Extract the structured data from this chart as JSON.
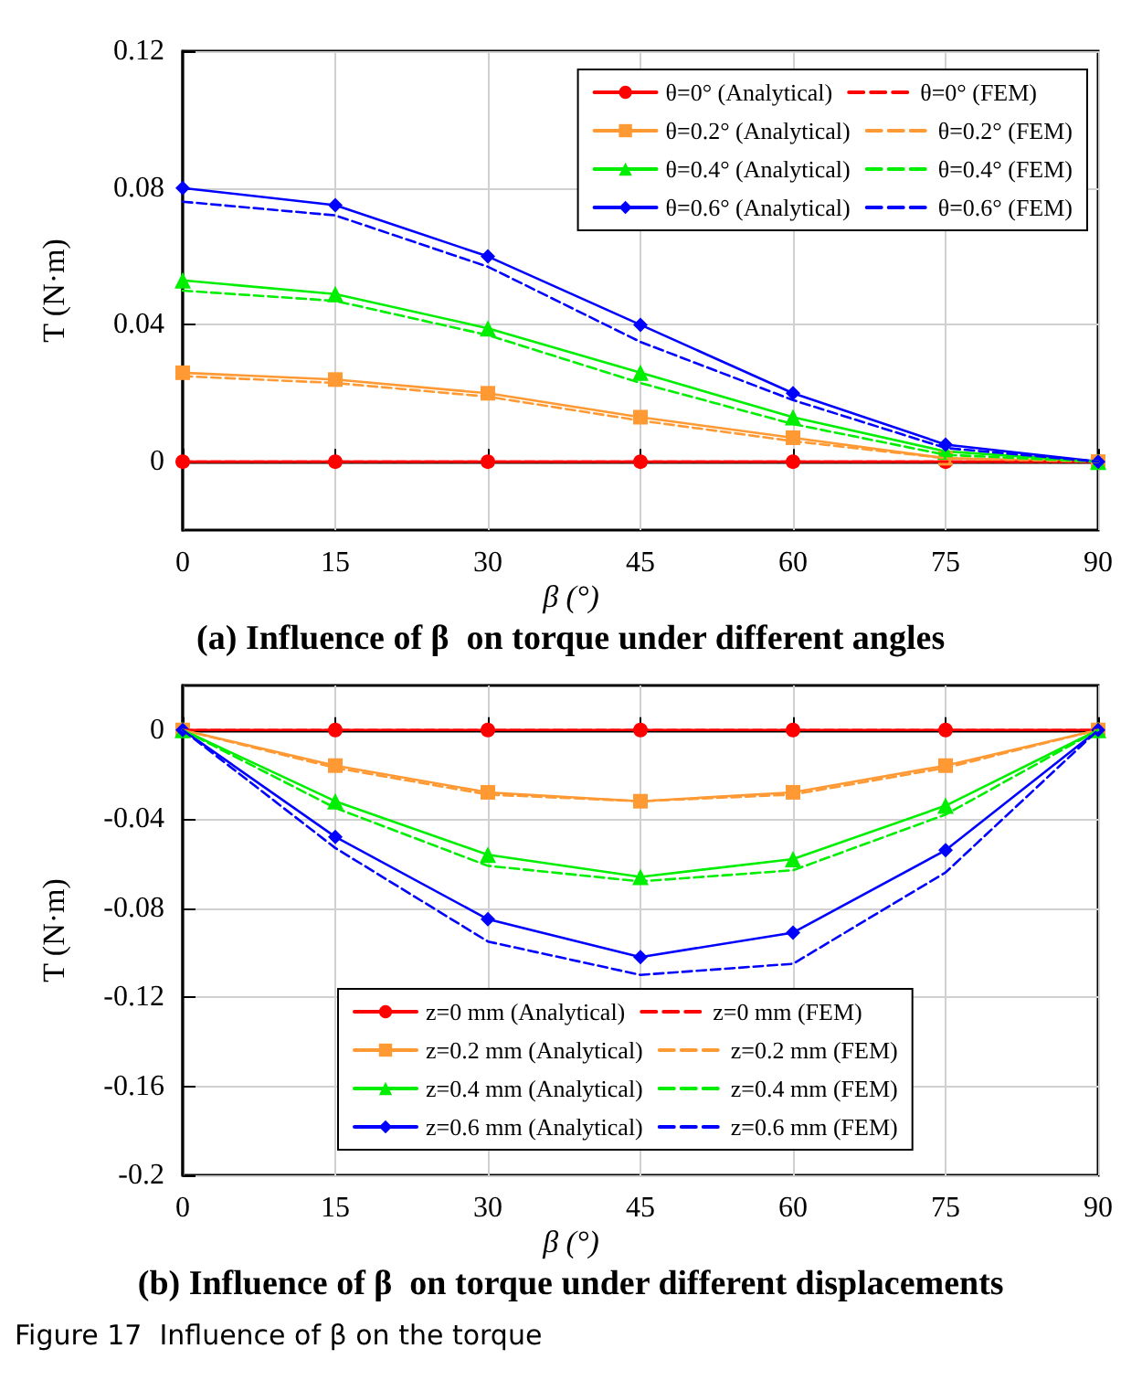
{
  "chart_data": [
    {
      "type": "line",
      "title": "(a) Influence of β  on torque under different angles",
      "xlabel": "β (°)",
      "ylabel": "T (N·m)",
      "x": [
        0,
        15,
        30,
        45,
        60,
        75,
        90
      ],
      "xlim": [
        0,
        90
      ],
      "xticks": [
        0,
        15,
        30,
        45,
        60,
        75,
        90
      ],
      "ylim": [
        -0.02,
        0.12
      ],
      "yticks": [
        0,
        0.04,
        0.08,
        0.12
      ],
      "grid": true,
      "legend": "top right",
      "series": [
        {
          "name": "θ=0° (Analytical)",
          "color": "#ff0000",
          "marker": "circle",
          "line_style": "solid",
          "values": [
            0,
            0,
            0,
            0,
            0,
            0,
            0
          ]
        },
        {
          "name": "θ=0° (FEM)",
          "color": "#ff0000",
          "marker": "none",
          "line_style": "dashed",
          "values": [
            0,
            0,
            0,
            0,
            0,
            0,
            0
          ]
        },
        {
          "name": "θ=0.2° (Analytical)",
          "color": "#ff9933",
          "marker": "square",
          "line_style": "solid",
          "values": [
            0.026,
            0.024,
            0.02,
            0.013,
            0.007,
            0.001,
            0
          ]
        },
        {
          "name": "θ=0.2° (FEM)",
          "color": "#ff9933",
          "marker": "none",
          "line_style": "dashed",
          "values": [
            0.025,
            0.023,
            0.019,
            0.012,
            0.006,
            0.001,
            0
          ]
        },
        {
          "name": "θ=0.4° (Analytical)",
          "color": "#00ee00",
          "marker": "triangle",
          "line_style": "solid",
          "values": [
            0.053,
            0.049,
            0.039,
            0.026,
            0.013,
            0.003,
            0
          ]
        },
        {
          "name": "θ=0.4° (FEM)",
          "color": "#00ee00",
          "marker": "none",
          "line_style": "dashed",
          "values": [
            0.05,
            0.047,
            0.037,
            0.023,
            0.011,
            0.002,
            0
          ]
        },
        {
          "name": "θ=0.6° (Analytical)",
          "color": "#0000ff",
          "marker": "diamond",
          "line_style": "solid",
          "values": [
            0.08,
            0.075,
            0.06,
            0.04,
            0.02,
            0.005,
            0
          ]
        },
        {
          "name": "θ=0.6° (FEM)",
          "color": "#0000ff",
          "marker": "none",
          "line_style": "dashed",
          "values": [
            0.076,
            0.072,
            0.057,
            0.035,
            0.018,
            0.004,
            0
          ]
        }
      ]
    },
    {
      "type": "line",
      "title": "(b) Influence of β  on torque under different displacements",
      "xlabel": "β (°)",
      "ylabel": "T (N·m)",
      "annotations": [
        "Figure 17  Influence of β on the torque"
      ],
      "x": [
        0,
        15,
        30,
        45,
        60,
        75,
        90
      ],
      "xlim": [
        0,
        90
      ],
      "xticks": [
        0,
        15,
        30,
        45,
        60,
        75,
        90
      ],
      "ylim": [
        -0.2,
        0.02
      ],
      "yticks": [
        -0.2,
        -0.16,
        -0.12,
        -0.08,
        -0.04,
        0
      ],
      "grid": true,
      "legend": "bottom",
      "series": [
        {
          "name": "z=0 mm (Analytical)",
          "color": "#ff0000",
          "marker": "circle",
          "line_style": "solid",
          "values": [
            0,
            0,
            0,
            0,
            0,
            0,
            0
          ]
        },
        {
          "name": "z=0 mm (FEM)",
          "color": "#ff0000",
          "marker": "none",
          "line_style": "dashed",
          "values": [
            0,
            0,
            0,
            0,
            0,
            0,
            0
          ]
        },
        {
          "name": "z=0.2 mm (Analytical)",
          "color": "#ff9933",
          "marker": "square",
          "line_style": "solid",
          "values": [
            0,
            -0.016,
            -0.028,
            -0.032,
            -0.028,
            -0.016,
            0
          ]
        },
        {
          "name": "z=0.2 mm (FEM)",
          "color": "#ff9933",
          "marker": "none",
          "line_style": "dashed",
          "values": [
            0,
            -0.017,
            -0.029,
            -0.032,
            -0.029,
            -0.017,
            0
          ]
        },
        {
          "name": "z=0.4 mm (Analytical)",
          "color": "#00ee00",
          "marker": "triangle",
          "line_style": "solid",
          "values": [
            0,
            -0.032,
            -0.056,
            -0.066,
            -0.058,
            -0.034,
            0
          ]
        },
        {
          "name": "z=0.4 mm (FEM)",
          "color": "#00ee00",
          "marker": "none",
          "line_style": "dashed",
          "values": [
            0,
            -0.035,
            -0.061,
            -0.068,
            -0.063,
            -0.038,
            0
          ]
        },
        {
          "name": "z=0.6 mm (Analytical)",
          "color": "#0000ff",
          "marker": "diamond",
          "line_style": "solid",
          "values": [
            0,
            -0.048,
            -0.085,
            -0.102,
            -0.091,
            -0.054,
            0
          ]
        },
        {
          "name": "z=0.6 mm (FEM)",
          "color": "#0000ff",
          "marker": "none",
          "line_style": "dashed",
          "values": [
            0,
            -0.053,
            -0.095,
            -0.11,
            -0.105,
            -0.064,
            0
          ]
        }
      ]
    }
  ]
}
